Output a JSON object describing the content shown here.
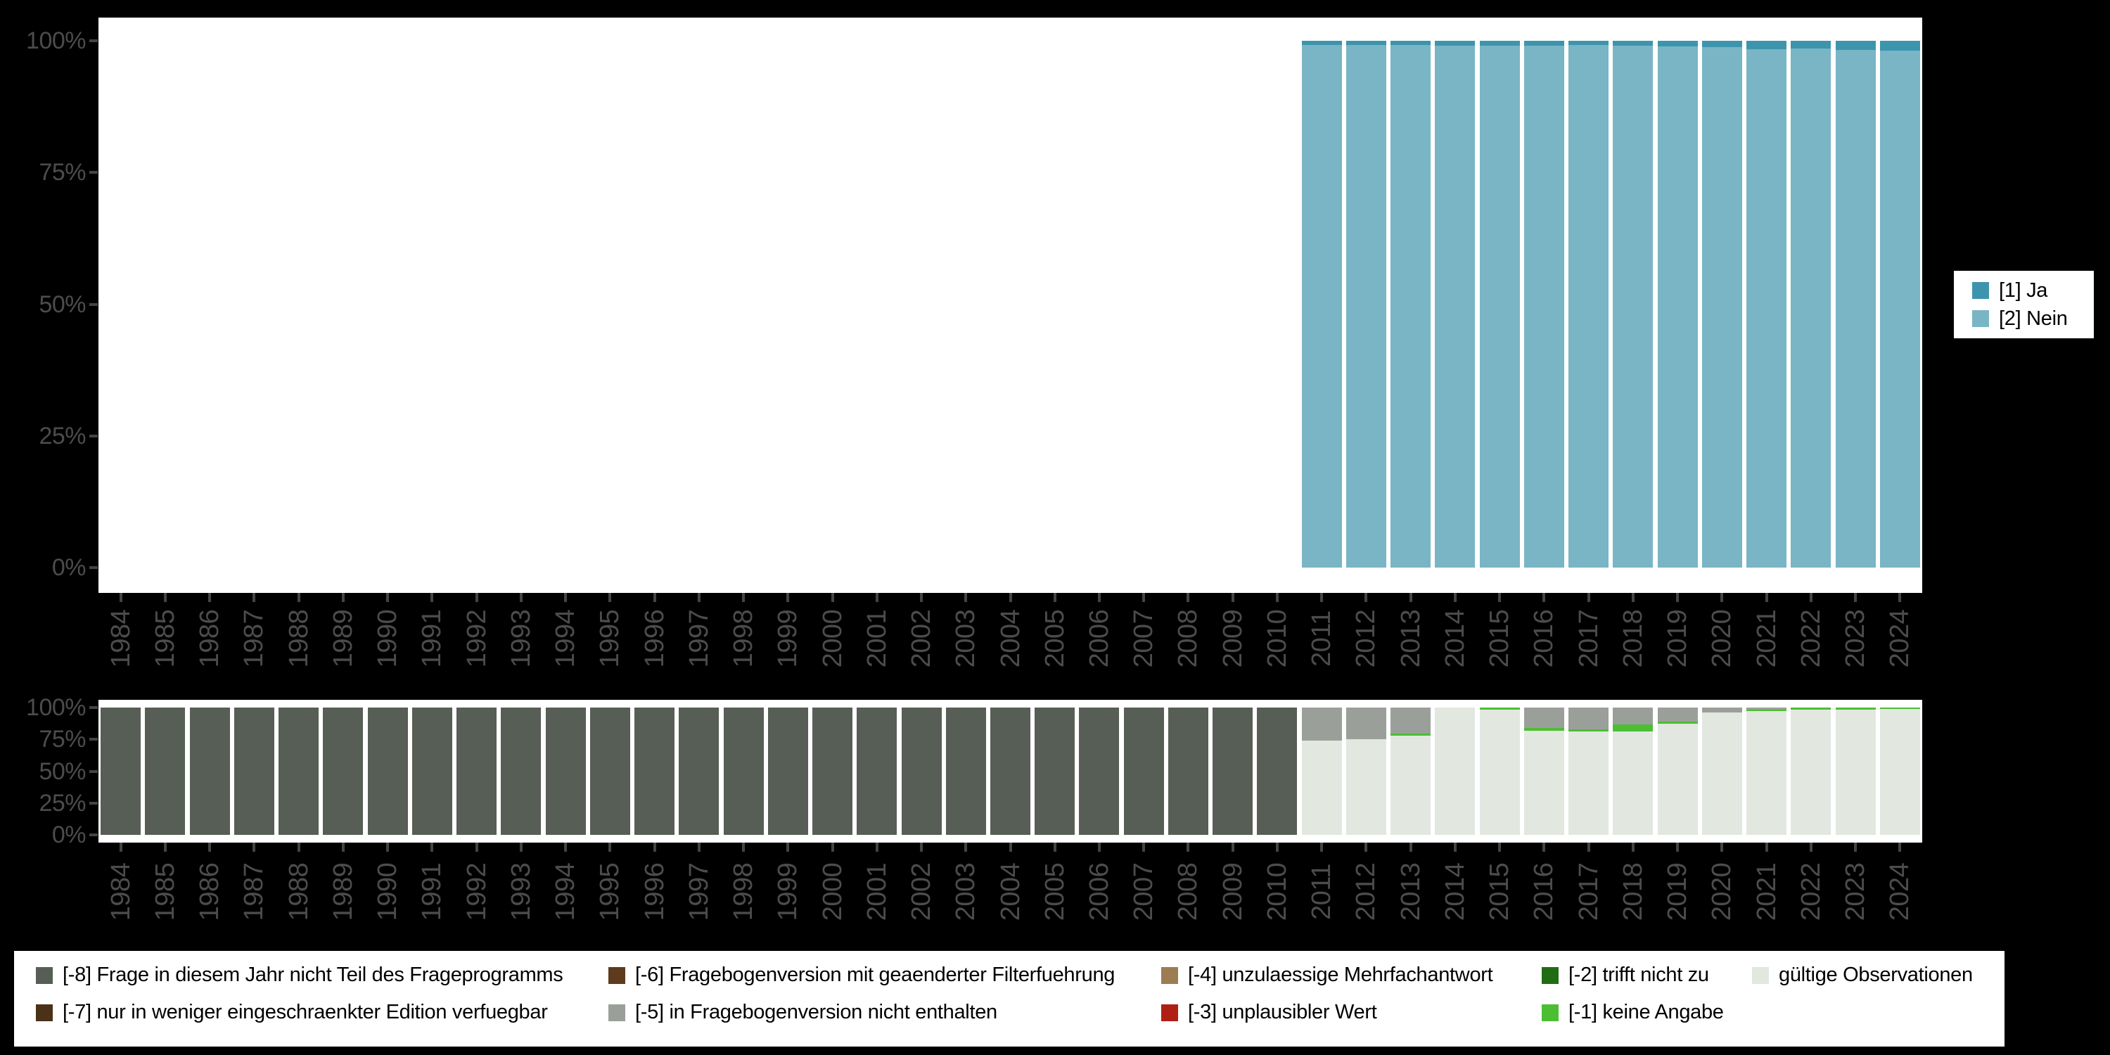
{
  "figure_background": "#000000",
  "panel_background": "#ffffff",
  "axis_text_color": "#4c4c4c",
  "chart_data": [
    {
      "name": "top_chart",
      "type": "bar",
      "stack": "percent",
      "ylabel": "",
      "xlabel": "",
      "grid": "off",
      "legend_position": "right",
      "y_ticks": [
        "100%",
        "75%",
        "50%",
        "25%",
        "0%"
      ],
      "ylim": [
        0,
        100
      ],
      "categories": [
        "1984",
        "1985",
        "1986",
        "1987",
        "1988",
        "1989",
        "1990",
        "1991",
        "1992",
        "1993",
        "1994",
        "1995",
        "1996",
        "1997",
        "1998",
        "1999",
        "2000",
        "2001",
        "2002",
        "2003",
        "2004",
        "2005",
        "2006",
        "2007",
        "2008",
        "2009",
        "2010",
        "2011",
        "2012",
        "2013",
        "2014",
        "2015",
        "2016",
        "2017",
        "2018",
        "2019",
        "2020",
        "2021",
        "2022",
        "2023",
        "2024"
      ],
      "legend": [
        {
          "key": "ja",
          "label": "[1] Ja",
          "color": "#3D95AD"
        },
        {
          "key": "nein",
          "label": "[2] Nein",
          "color": "#79B5C5"
        }
      ],
      "bars": [
        {
          "year": "2011",
          "segments": [
            [
              "ja",
              0.8
            ],
            [
              "nein",
              99.2
            ]
          ]
        },
        {
          "year": "2012",
          "segments": [
            [
              "ja",
              0.8
            ],
            [
              "nein",
              99.2
            ]
          ]
        },
        {
          "year": "2013",
          "segments": [
            [
              "ja",
              0.8
            ],
            [
              "nein",
              99.2
            ]
          ]
        },
        {
          "year": "2014",
          "segments": [
            [
              "ja",
              0.9
            ],
            [
              "nein",
              99.1
            ]
          ]
        },
        {
          "year": "2015",
          "segments": [
            [
              "ja",
              0.9
            ],
            [
              "nein",
              99.1
            ]
          ]
        },
        {
          "year": "2016",
          "segments": [
            [
              "ja",
              0.9
            ],
            [
              "nein",
              99.1
            ]
          ]
        },
        {
          "year": "2017",
          "segments": [
            [
              "ja",
              0.8
            ],
            [
              "nein",
              99.2
            ]
          ]
        },
        {
          "year": "2018",
          "segments": [
            [
              "ja",
              0.9
            ],
            [
              "nein",
              99.1
            ]
          ]
        },
        {
          "year": "2019",
          "segments": [
            [
              "ja",
              1.1
            ],
            [
              "nein",
              98.9
            ]
          ]
        },
        {
          "year": "2020",
          "segments": [
            [
              "ja",
              1.2
            ],
            [
              "nein",
              98.8
            ]
          ]
        },
        {
          "year": "2021",
          "segments": [
            [
              "ja",
              1.6
            ],
            [
              "nein",
              98.4
            ]
          ]
        },
        {
          "year": "2022",
          "segments": [
            [
              "ja",
              1.5
            ],
            [
              "nein",
              98.5
            ]
          ]
        },
        {
          "year": "2023",
          "segments": [
            [
              "ja",
              1.7
            ],
            [
              "nein",
              98.3
            ]
          ]
        },
        {
          "year": "2024",
          "segments": [
            [
              "ja",
              1.9
            ],
            [
              "nein",
              98.1
            ]
          ]
        }
      ]
    },
    {
      "name": "bottom_chart",
      "type": "bar",
      "stack": "percent",
      "ylabel": "",
      "xlabel": "",
      "grid": "off",
      "legend_position": "bottom",
      "y_ticks": [
        "100%",
        "75%",
        "50%",
        "25%",
        "0%"
      ],
      "ylim": [
        0,
        100
      ],
      "categories": [
        "1984",
        "1985",
        "1986",
        "1987",
        "1988",
        "1989",
        "1990",
        "1991",
        "1992",
        "1993",
        "1994",
        "1995",
        "1996",
        "1997",
        "1998",
        "1999",
        "2000",
        "2001",
        "2002",
        "2003",
        "2004",
        "2005",
        "2006",
        "2007",
        "2008",
        "2009",
        "2010",
        "2011",
        "2012",
        "2013",
        "2014",
        "2015",
        "2016",
        "2017",
        "2018",
        "2019",
        "2020",
        "2021",
        "2022",
        "2023",
        "2024"
      ],
      "legend": [
        {
          "key": "-8",
          "label": "[-8] Frage in diesem Jahr nicht Teil des Frageprogramms",
          "color": "#575E55"
        },
        {
          "key": "-7",
          "label": "[-7] nur in weniger eingeschraenkter Edition verfuegbar",
          "color": "#4A3118"
        },
        {
          "key": "-6",
          "label": "[-6] Fragebogenversion mit geaenderter Filterfuehrung",
          "color": "#5E3B1C"
        },
        {
          "key": "-5",
          "label": "[-5] in Fragebogenversion nicht enthalten",
          "color": "#9AA099"
        },
        {
          "key": "-4",
          "label": "[-4] unzulaessige Mehrfachantwort",
          "color": "#9C7C52"
        },
        {
          "key": "-3",
          "label": "[-3] unplausibler Wert",
          "color": "#B01F14"
        },
        {
          "key": "-2",
          "label": "[-2] trifft nicht zu",
          "color": "#206C12"
        },
        {
          "key": "-1",
          "label": "[-1] keine Angabe",
          "color": "#4CBE34"
        },
        {
          "key": "valid",
          "label": "gültige Observationen",
          "color": "#E2E7E0"
        }
      ],
      "bars": [
        {
          "year": "1984",
          "segments": [
            [
              "-8",
              100
            ]
          ]
        },
        {
          "year": "1985",
          "segments": [
            [
              "-8",
              100
            ]
          ]
        },
        {
          "year": "1986",
          "segments": [
            [
              "-8",
              100
            ]
          ]
        },
        {
          "year": "1987",
          "segments": [
            [
              "-8",
              100
            ]
          ]
        },
        {
          "year": "1988",
          "segments": [
            [
              "-8",
              100
            ]
          ]
        },
        {
          "year": "1989",
          "segments": [
            [
              "-8",
              100
            ]
          ]
        },
        {
          "year": "1990",
          "segments": [
            [
              "-8",
              100
            ]
          ]
        },
        {
          "year": "1991",
          "segments": [
            [
              "-8",
              100
            ]
          ]
        },
        {
          "year": "1992",
          "segments": [
            [
              "-8",
              100
            ]
          ]
        },
        {
          "year": "1993",
          "segments": [
            [
              "-8",
              100
            ]
          ]
        },
        {
          "year": "1994",
          "segments": [
            [
              "-8",
              100
            ]
          ]
        },
        {
          "year": "1995",
          "segments": [
            [
              "-8",
              100
            ]
          ]
        },
        {
          "year": "1996",
          "segments": [
            [
              "-8",
              100
            ]
          ]
        },
        {
          "year": "1997",
          "segments": [
            [
              "-8",
              100
            ]
          ]
        },
        {
          "year": "1998",
          "segments": [
            [
              "-8",
              100
            ]
          ]
        },
        {
          "year": "1999",
          "segments": [
            [
              "-8",
              100
            ]
          ]
        },
        {
          "year": "2000",
          "segments": [
            [
              "-8",
              100
            ]
          ]
        },
        {
          "year": "2001",
          "segments": [
            [
              "-8",
              100
            ]
          ]
        },
        {
          "year": "2002",
          "segments": [
            [
              "-8",
              100
            ]
          ]
        },
        {
          "year": "2003",
          "segments": [
            [
              "-8",
              100
            ]
          ]
        },
        {
          "year": "2004",
          "segments": [
            [
              "-8",
              100
            ]
          ]
        },
        {
          "year": "2005",
          "segments": [
            [
              "-8",
              100
            ]
          ]
        },
        {
          "year": "2006",
          "segments": [
            [
              "-8",
              100
            ]
          ]
        },
        {
          "year": "2007",
          "segments": [
            [
              "-8",
              100
            ]
          ]
        },
        {
          "year": "2008",
          "segments": [
            [
              "-8",
              100
            ]
          ]
        },
        {
          "year": "2009",
          "segments": [
            [
              "-8",
              100
            ]
          ]
        },
        {
          "year": "2010",
          "segments": [
            [
              "-8",
              100
            ]
          ]
        },
        {
          "year": "2011",
          "segments": [
            [
              "-5",
              26
            ],
            [
              "valid",
              74
            ]
          ]
        },
        {
          "year": "2012",
          "segments": [
            [
              "-5",
              25
            ],
            [
              "valid",
              75
            ]
          ]
        },
        {
          "year": "2013",
          "segments": [
            [
              "-5",
              20.5
            ],
            [
              "-1",
              1.5
            ],
            [
              "valid",
              78
            ]
          ]
        },
        {
          "year": "2014",
          "segments": [
            [
              "valid",
              100
            ]
          ]
        },
        {
          "year": "2015",
          "segments": [
            [
              "-1",
              1.5
            ],
            [
              "valid",
              98.5
            ]
          ]
        },
        {
          "year": "2016",
          "segments": [
            [
              "-5",
              16
            ],
            [
              "-1",
              2
            ],
            [
              "valid",
              82
            ]
          ]
        },
        {
          "year": "2017",
          "segments": [
            [
              "-5",
              17
            ],
            [
              "-1",
              2
            ],
            [
              "valid",
              81
            ]
          ]
        },
        {
          "year": "2018",
          "segments": [
            [
              "-5",
              13.5
            ],
            [
              "-1",
              5.5
            ],
            [
              "valid",
              81
            ]
          ]
        },
        {
          "year": "2019",
          "segments": [
            [
              "-5",
              11
            ],
            [
              "-1",
              1.5
            ],
            [
              "valid",
              87.5
            ]
          ]
        },
        {
          "year": "2020",
          "segments": [
            [
              "-5",
              4
            ],
            [
              "valid",
              96
            ]
          ]
        },
        {
          "year": "2021",
          "segments": [
            [
              "-5",
              1.5
            ],
            [
              "-1",
              1.5
            ],
            [
              "valid",
              97
            ]
          ]
        },
        {
          "year": "2022",
          "segments": [
            [
              "-1",
              1.5
            ],
            [
              "valid",
              98.5
            ]
          ]
        },
        {
          "year": "2023",
          "segments": [
            [
              "-1",
              1.5
            ],
            [
              "valid",
              98.5
            ]
          ]
        },
        {
          "year": "2024",
          "segments": [
            [
              "-1",
              1
            ],
            [
              "valid",
              99
            ]
          ]
        }
      ]
    }
  ]
}
